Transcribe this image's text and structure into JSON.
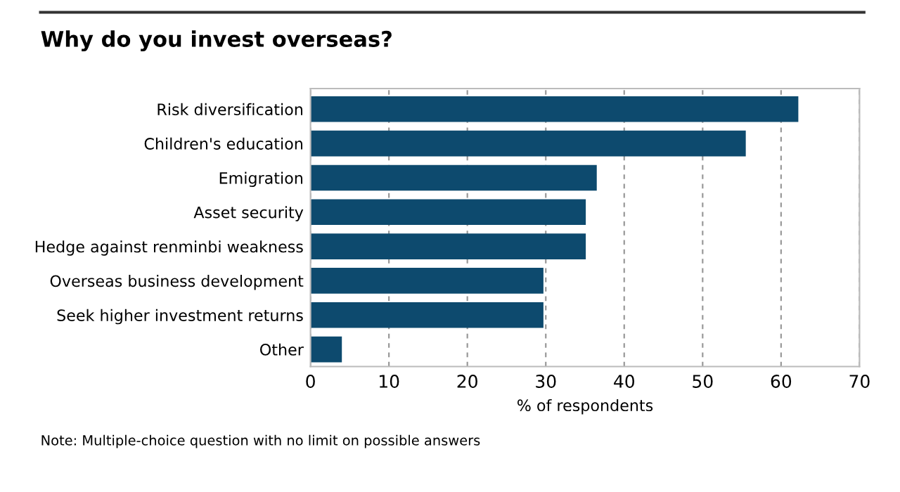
{
  "chart_data": {
    "type": "bar",
    "orientation": "horizontal",
    "title": "Why do you invest overseas?",
    "xlabel": "% of respondents",
    "categories": [
      "Risk diversification",
      "Children's education",
      "Emigration",
      "Asset security",
      "Hedge against renminbi weakness",
      "Overseas business development",
      "Seek higher investment returns",
      "Other"
    ],
    "values": [
      62.2,
      55.5,
      36.5,
      35.1,
      35.1,
      29.7,
      29.7,
      4.0
    ],
    "color": "#0d4a6e",
    "xlim": [
      0,
      70
    ],
    "xticks": [
      0,
      10,
      20,
      30,
      40,
      50,
      60,
      70
    ],
    "grid": "x",
    "annotations": [
      "Note: Multiple-choice question with no limit on possible answers"
    ]
  }
}
